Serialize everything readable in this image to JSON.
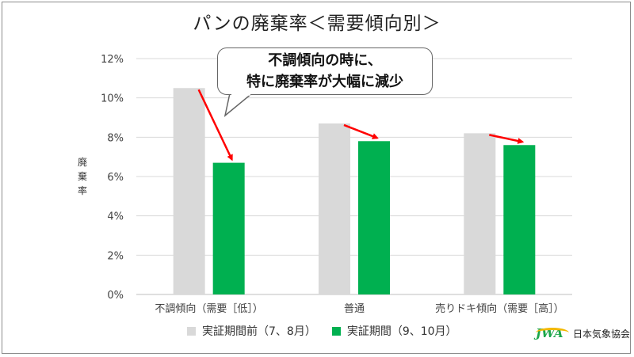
{
  "title": "パンの廃棄率＜需要傾向別＞",
  "callout": "不調傾向の時に、\n特に廃棄率が大幅に減少",
  "logo_text": "日本気象協会",
  "logo_mark": "JWA",
  "colors": {
    "before": "#d9d9d9",
    "during": "#00b050",
    "arrow": "#ff0000",
    "grid": "#d9d9d9"
  },
  "chart_data": {
    "type": "bar",
    "categories": [
      "不調傾向（需要［低］）",
      "普通",
      "売りドキ傾向（需要［高］）"
    ],
    "series": [
      {
        "name": "実証期間前（7、8月）",
        "values": [
          10.5,
          8.7,
          8.2
        ]
      },
      {
        "name": "実証期間（9、10月）",
        "values": [
          6.7,
          7.8,
          7.6
        ]
      }
    ],
    "ylabel": "廃棄率",
    "ylim": [
      0,
      12
    ],
    "yticks": [
      "0%",
      "2%",
      "4%",
      "6%",
      "8%",
      "10%",
      "12%"
    ],
    "ytick_values": [
      0,
      2,
      4,
      6,
      8,
      10,
      12
    ],
    "grid": true,
    "legend_position": "bottom"
  }
}
